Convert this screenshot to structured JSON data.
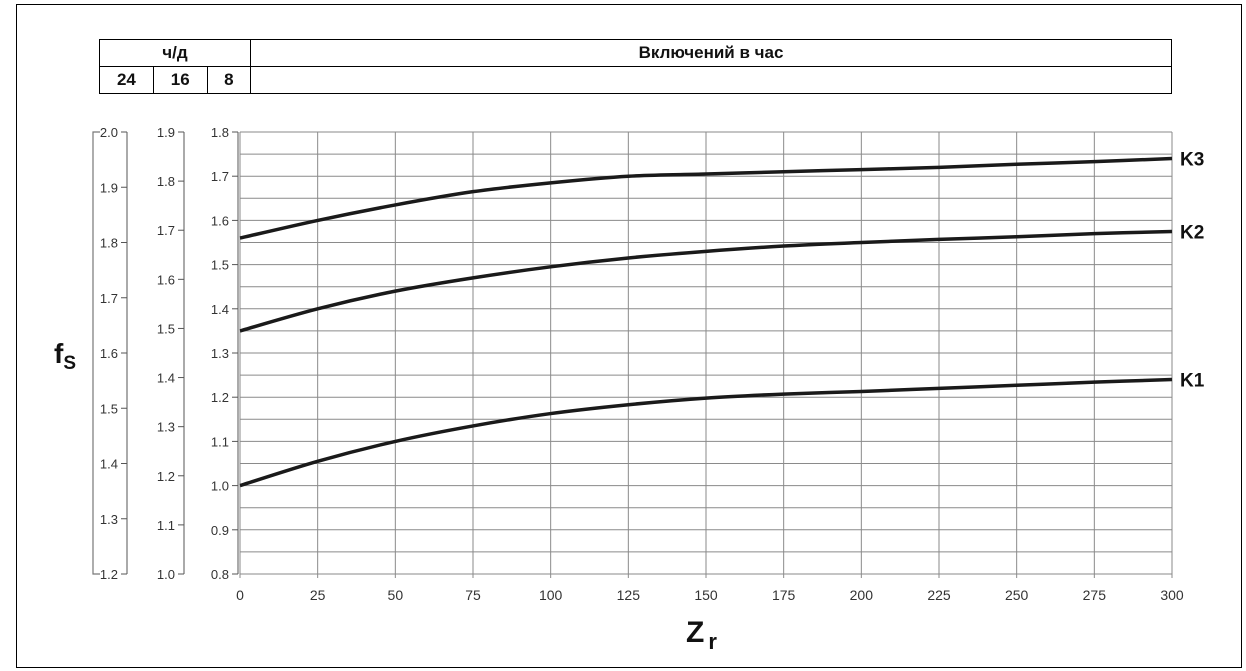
{
  "header": {
    "hours_per_day_label": "ч/д",
    "hours_per_day_values": [
      "24",
      "16",
      "8"
    ],
    "starts_per_hour_label": "Включений в час"
  },
  "chart_data": {
    "type": "line",
    "ylabel": "f",
    "ylabel_sub": "S",
    "xlabel": "Z",
    "xlabel_sub": "r",
    "xlim": [
      0,
      300
    ],
    "x_ticks": [
      "0",
      "25",
      "50",
      "75",
      "100",
      "125",
      "150",
      "175",
      "200",
      "225",
      "250",
      "275",
      "300"
    ],
    "y_axes": [
      {
        "name": "24",
        "ylim": [
          1.2,
          2.0
        ],
        "ticks": [
          "2.0",
          "1.9",
          "1.8",
          "1.7",
          "1.6",
          "1.5",
          "1.4",
          "1.3",
          "1.2"
        ]
      },
      {
        "name": "16",
        "ylim": [
          1.0,
          1.9
        ],
        "ticks": [
          "1.9",
          "1.8",
          "1.7",
          "1.6",
          "1.5",
          "1.4",
          "1.3",
          "1.2",
          "1.1",
          "1.0"
        ]
      },
      {
        "name": "8",
        "ylim": [
          0.8,
          1.8
        ],
        "ticks": [
          "1.8",
          "1.7",
          "1.6",
          "1.5",
          "1.4",
          "1.3",
          "1.2",
          "1.1",
          "1.0",
          "0.9",
          "0.8"
        ]
      }
    ],
    "grid": true,
    "x": [
      0,
      25,
      50,
      75,
      100,
      125,
      150,
      175,
      200,
      225,
      250,
      275,
      300
    ],
    "series": [
      {
        "name": "K3",
        "values": [
          1.56,
          1.6,
          1.635,
          1.665,
          1.685,
          1.7,
          1.705,
          1.71,
          1.715,
          1.72,
          1.727,
          1.733,
          1.74
        ]
      },
      {
        "name": "K2",
        "values": [
          1.35,
          1.4,
          1.44,
          1.47,
          1.495,
          1.515,
          1.53,
          1.542,
          1.55,
          1.557,
          1.563,
          1.57,
          1.575
        ]
      },
      {
        "name": "K1",
        "values": [
          1.0,
          1.055,
          1.1,
          1.135,
          1.163,
          1.183,
          1.198,
          1.207,
          1.213,
          1.22,
          1.227,
          1.234,
          1.24
        ]
      }
    ]
  }
}
